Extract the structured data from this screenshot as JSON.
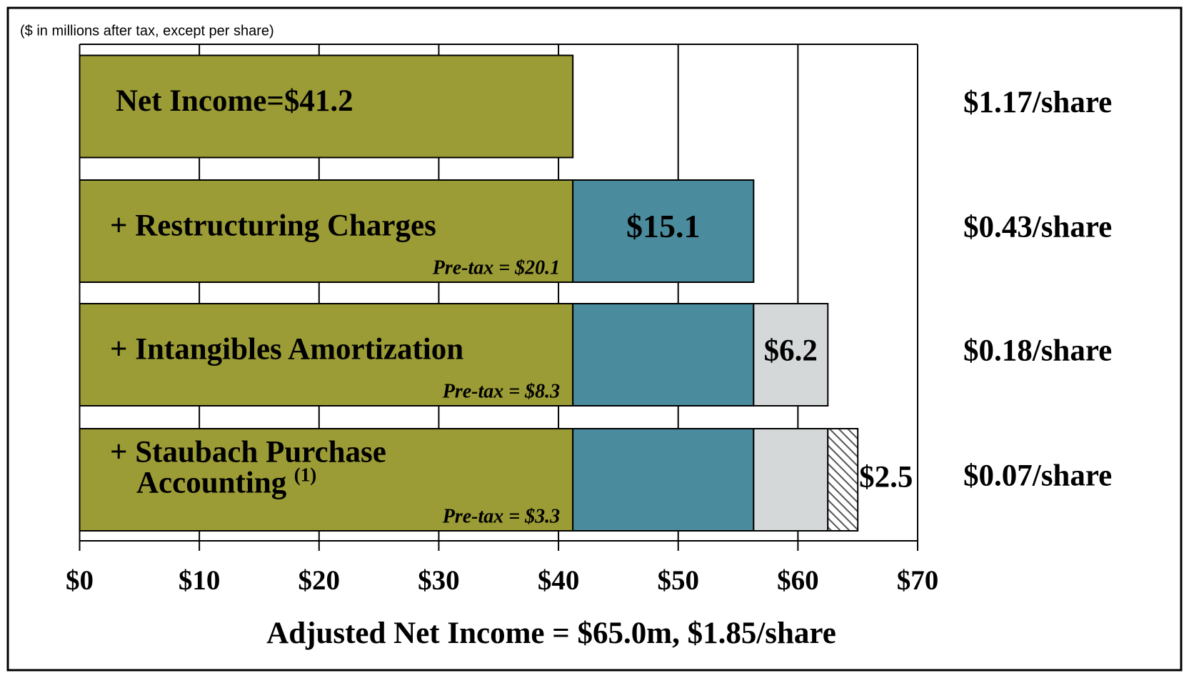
{
  "chart_data": {
    "type": "stacked-barh",
    "subtitle": "($ in millions after tax, except per share)",
    "x_label": "Adjusted Net Income = $65.0m, $1.85/share",
    "categories": [
      "Net Income=$41.2",
      "+ Restructuring Charges",
      "+ Intangibles Amortization",
      [
        "+ Staubach Purchase",
        "Accounting"
      ]
    ],
    "category_notes": [
      null,
      null,
      null,
      "(1)"
    ],
    "pretax_labels": [
      null,
      "Pre-tax = $20.1",
      "Pre-tax = $8.3",
      "Pre-tax = $3.3"
    ],
    "per_share_labels": [
      "$1.17/share",
      "$0.43/share",
      "$0.18/share",
      "$0.07/share"
    ],
    "series": [
      {
        "color": "#9c9c36",
        "values": [
          41.2,
          41.2,
          41.2,
          41.2
        ]
      },
      {
        "color": "#4a8c9d",
        "values": [
          null,
          15.1,
          15.1,
          15.1
        ],
        "value_labels": [
          null,
          "$15.1",
          null,
          null
        ]
      },
      {
        "color": "#d5d8d9",
        "values": [
          null,
          null,
          6.2,
          6.2
        ],
        "value_labels": [
          null,
          null,
          "$6.2",
          null
        ]
      },
      {
        "color": "#ffffff",
        "hatch": true,
        "values": [
          null,
          null,
          null,
          2.5
        ],
        "value_labels": [
          null,
          null,
          null,
          "$2.5"
        ]
      }
    ],
    "xlim": [
      0,
      70
    ],
    "xticks": [
      {
        "value": 0,
        "label": "$0"
      },
      {
        "value": 10,
        "label": "$10"
      },
      {
        "value": 20,
        "label": "$20"
      },
      {
        "value": 30,
        "label": "$30"
      },
      {
        "value": 40,
        "label": "$40"
      },
      {
        "value": 50,
        "label": "$50"
      },
      {
        "value": 60,
        "label": "$60"
      },
      {
        "value": 70,
        "label": "$70"
      }
    ],
    "grid": true
  }
}
